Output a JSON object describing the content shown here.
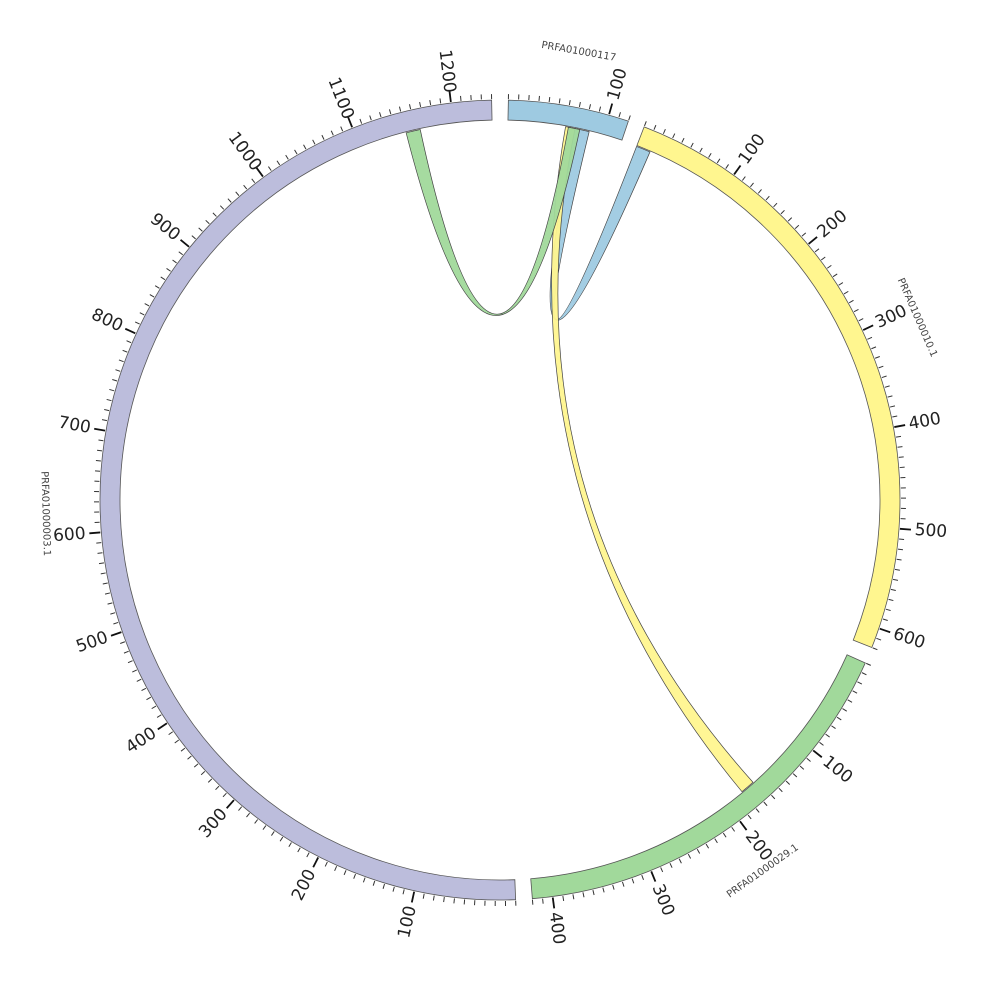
{
  "chart_data": {
    "type": "chord",
    "segments": [
      {
        "name": "PRFA01000117",
        "length": 120,
        "color": "#9ecae1"
      },
      {
        "name": "PRFA01000010.1",
        "length": 620,
        "color": "#fff68f"
      },
      {
        "name": "PRFA01000029.1",
        "length": 420,
        "color": "#a1d99b"
      },
      {
        "name": "PRFA01000003.1",
        "length": 1240,
        "color": "#bcbddc"
      }
    ],
    "links": [
      {
        "source": "PRFA01000117",
        "source_range": [
          70,
          85
        ],
        "target": "PRFA01000010.1",
        "target_range": [
          0,
          15
        ],
        "color": "#9ecae1"
      },
      {
        "source": "PRFA01000117",
        "source_range": [
          60,
          70
        ],
        "target": "PRFA01000029.1",
        "target_range": [
          165,
          180
        ],
        "color": "#fff68f"
      },
      {
        "source": "PRFA01000117",
        "source_range": [
          63,
          75
        ],
        "target": "PRFA01000003.1",
        "target_range": [
          1150,
          1165
        ],
        "color": "#a1d99b"
      }
    ]
  }
}
